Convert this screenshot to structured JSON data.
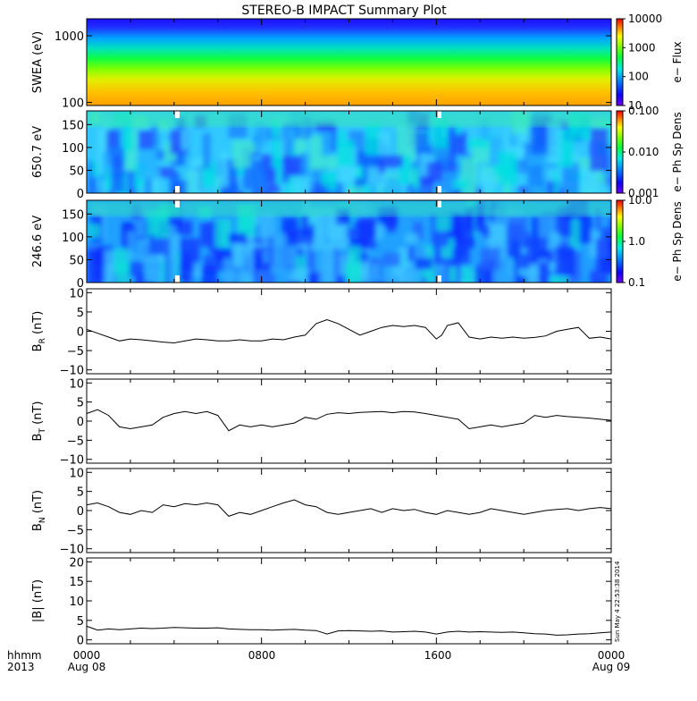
{
  "title": "STEREO-B IMPACT Summary Plot",
  "stamp": "Sun May  4 22:53:38 2014",
  "footer": {
    "label_top": "hhmm",
    "label_bottom": "2013",
    "ticks": [
      {
        "hhmm": "0000",
        "date": "Aug 08"
      },
      {
        "hhmm": "0800",
        "date": ""
      },
      {
        "hhmm": "1600",
        "date": ""
      },
      {
        "hhmm": "0000",
        "date": "Aug 09"
      }
    ]
  },
  "chart_data": [
    {
      "type": "heatmap",
      "ylabel": "SWEA (eV)",
      "ylog": true,
      "ylim": [
        90,
        1800
      ],
      "yticks": [
        {
          "value": 100,
          "label": "100"
        },
        {
          "value": 1000,
          "label": "1000"
        }
      ],
      "colorbar": {
        "label": "e− Flux",
        "log": true,
        "ticks": [
          {
            "value": 10,
            "label": "10"
          },
          {
            "value": 100,
            "label": "100"
          },
          {
            "value": 1000,
            "label": "1000"
          },
          {
            "value": 10000,
            "label": "10000"
          }
        ]
      }
    },
    {
      "type": "heatmap",
      "ylabel": "650.7 eV",
      "ylim": [
        0,
        180
      ],
      "yticks": [
        {
          "value": 0,
          "label": "0"
        },
        {
          "value": 50,
          "label": "50"
        },
        {
          "value": 100,
          "label": "100"
        },
        {
          "value": 150,
          "label": "150"
        }
      ],
      "colorbar": {
        "label": "e− Ph Sp Dens",
        "log": true,
        "ticks": [
          {
            "value": 0.001,
            "label": "0.001"
          },
          {
            "value": 0.01,
            "label": "0.010"
          },
          {
            "value": 0.1,
            "label": "0.100"
          }
        ]
      }
    },
    {
      "type": "heatmap",
      "ylabel": "246.6 eV",
      "ylim": [
        0,
        180
      ],
      "yticks": [
        {
          "value": 0,
          "label": "0"
        },
        {
          "value": 50,
          "label": "50"
        },
        {
          "value": 100,
          "label": "100"
        },
        {
          "value": 150,
          "label": "150"
        }
      ],
      "colorbar": {
        "label": "e− Ph Sp Dens",
        "log": true,
        "ticks": [
          {
            "value": 0.1,
            "label": "0.1"
          },
          {
            "value": 1,
            "label": "1.0"
          },
          {
            "value": 10,
            "label": "10.0"
          }
        ]
      }
    },
    {
      "type": "line",
      "ylabel": "B",
      "ysub": "R",
      "yunit": "(nT)",
      "ylim": [
        -11,
        11
      ],
      "yticks": [
        {
          "value": -10,
          "label": "−10"
        },
        {
          "value": -5,
          "label": "−5"
        },
        {
          "value": 0,
          "label": "0"
        },
        {
          "value": 5,
          "label": "5"
        },
        {
          "value": 10,
          "label": "10"
        }
      ],
      "x": [
        0,
        0.5,
        1,
        1.5,
        2,
        2.5,
        3,
        3.5,
        4,
        4.5,
        5,
        5.5,
        6,
        6.5,
        7,
        7.5,
        8,
        8.5,
        9,
        9.5,
        10,
        10.5,
        11,
        11.5,
        12,
        12.5,
        13,
        13.5,
        14,
        14.5,
        15,
        15.5,
        16,
        16.25,
        16.5,
        17,
        17.5,
        18,
        18.5,
        19,
        19.5,
        20,
        20.5,
        21,
        21.5,
        22,
        22.5,
        23,
        23.5,
        24
      ],
      "y": [
        0.5,
        -0.5,
        -1.5,
        -2.5,
        -2.0,
        -2.2,
        -2.5,
        -2.8,
        -3.0,
        -2.5,
        -2.0,
        -2.2,
        -2.5,
        -2.5,
        -2.2,
        -2.5,
        -2.5,
        -2.0,
        -2.2,
        -1.5,
        -1.0,
        2.0,
        3.0,
        2.0,
        0.5,
        -1.0,
        0.0,
        1.0,
        1.5,
        1.2,
        1.5,
        1.0,
        -2.0,
        -1.0,
        1.5,
        2.2,
        -1.5,
        -2.0,
        -1.5,
        -1.8,
        -1.5,
        -1.8,
        -1.6,
        -1.2,
        0.0,
        0.5,
        1.0,
        -1.8,
        -1.5,
        -2.0
      ]
    },
    {
      "type": "line",
      "ylabel": "B",
      "ysub": "T",
      "yunit": "(nT)",
      "ylim": [
        -11,
        11
      ],
      "yticks": [
        {
          "value": -10,
          "label": "−10"
        },
        {
          "value": -5,
          "label": "−5"
        },
        {
          "value": 0,
          "label": "0"
        },
        {
          "value": 5,
          "label": "5"
        },
        {
          "value": 10,
          "label": "10"
        }
      ],
      "x": [
        0,
        0.5,
        1,
        1.5,
        2,
        2.5,
        3,
        3.5,
        4,
        4.5,
        5,
        5.5,
        6,
        6.5,
        7,
        7.5,
        8,
        8.5,
        9,
        9.5,
        10,
        10.5,
        11,
        11.5,
        12,
        12.5,
        13,
        13.5,
        14,
        14.5,
        15,
        15.5,
        16,
        16.5,
        17,
        17.5,
        18,
        18.5,
        19,
        19.5,
        20,
        20.5,
        21,
        21.5,
        22,
        22.5,
        23,
        23.5,
        24
      ],
      "y": [
        2.0,
        3.0,
        1.5,
        -1.5,
        -2.0,
        -1.5,
        -1.0,
        1.0,
        2.0,
        2.5,
        2.0,
        2.5,
        1.5,
        -2.5,
        -1.0,
        -1.5,
        -1.0,
        -1.5,
        -1.0,
        -0.5,
        1.0,
        0.5,
        1.8,
        2.2,
        2.0,
        2.3,
        2.4,
        2.5,
        2.2,
        2.5,
        2.4,
        2.0,
        1.5,
        1.0,
        0.5,
        -2.0,
        -1.5,
        -1.0,
        -1.5,
        -1.0,
        -0.5,
        1.5,
        1.0,
        1.5,
        1.2,
        1.0,
        0.8,
        0.5,
        0.2
      ]
    },
    {
      "type": "line",
      "ylabel": "B",
      "ysub": "N",
      "yunit": "(nT)",
      "ylim": [
        -11,
        11
      ],
      "yticks": [
        {
          "value": -10,
          "label": "−10"
        },
        {
          "value": -5,
          "label": "−5"
        },
        {
          "value": 0,
          "label": "0"
        },
        {
          "value": 5,
          "label": "5"
        },
        {
          "value": 10,
          "label": "10"
        }
      ],
      "x": [
        0,
        0.5,
        1,
        1.5,
        2,
        2.5,
        3,
        3.5,
        4,
        4.5,
        5,
        5.5,
        6,
        6.5,
        7,
        7.5,
        8,
        8.5,
        9,
        9.5,
        10,
        10.5,
        11,
        11.5,
        12,
        12.5,
        13,
        13.5,
        14,
        14.5,
        15,
        15.5,
        16,
        16.5,
        17,
        17.5,
        18,
        18.5,
        19,
        19.5,
        20,
        20.5,
        21,
        21.5,
        22,
        22.5,
        23,
        23.5,
        24
      ],
      "y": [
        1.5,
        2.0,
        1.0,
        -0.5,
        -1.0,
        0.0,
        -0.5,
        1.5,
        1.0,
        1.8,
        1.5,
        2.0,
        1.5,
        -1.5,
        -0.5,
        -1.0,
        0.0,
        1.0,
        2.0,
        2.8,
        1.5,
        1.0,
        -0.5,
        -1.0,
        -0.5,
        0.0,
        0.5,
        -0.5,
        0.5,
        0.0,
        0.3,
        -0.5,
        -1.0,
        0.0,
        -0.5,
        -1.0,
        -0.5,
        0.5,
        0.0,
        -0.5,
        -1.0,
        -0.5,
        0.0,
        0.3,
        0.5,
        0.0,
        0.5,
        0.8,
        0.5
      ]
    },
    {
      "type": "line",
      "ylabel": "|B|",
      "ysub": "",
      "yunit": "(nT)",
      "ylim": [
        -1,
        21
      ],
      "yticks": [
        {
          "value": 0,
          "label": "0"
        },
        {
          "value": 5,
          "label": "5"
        },
        {
          "value": 10,
          "label": "10"
        },
        {
          "value": 15,
          "label": "15"
        },
        {
          "value": 20,
          "label": "20"
        }
      ],
      "x": [
        0,
        0.5,
        1,
        1.5,
        2,
        2.5,
        3,
        3.5,
        4,
        4.5,
        5,
        5.5,
        6,
        6.5,
        7,
        7.5,
        8,
        8.5,
        9,
        9.5,
        10,
        10.5,
        11,
        11.5,
        12,
        12.5,
        13,
        13.5,
        14,
        14.5,
        15,
        15.5,
        16,
        16.5,
        17,
        17.5,
        18,
        18.5,
        19,
        19.5,
        20,
        20.5,
        21,
        21.5,
        22,
        22.5,
        23,
        23.5,
        24
      ],
      "y": [
        3.5,
        2.5,
        2.8,
        2.6,
        2.8,
        3.0,
        2.9,
        3.0,
        3.2,
        3.1,
        3.0,
        3.0,
        3.1,
        2.8,
        2.7,
        2.6,
        2.6,
        2.5,
        2.6,
        2.7,
        2.5,
        2.4,
        1.5,
        2.3,
        2.4,
        2.3,
        2.2,
        2.3,
        2.0,
        2.1,
        2.2,
        2.0,
        1.5,
        2.0,
        2.2,
        2.0,
        2.1,
        2.0,
        1.9,
        2.0,
        1.8,
        1.6,
        1.5,
        1.2,
        1.3,
        1.5,
        1.6,
        1.8,
        2.0
      ]
    }
  ]
}
